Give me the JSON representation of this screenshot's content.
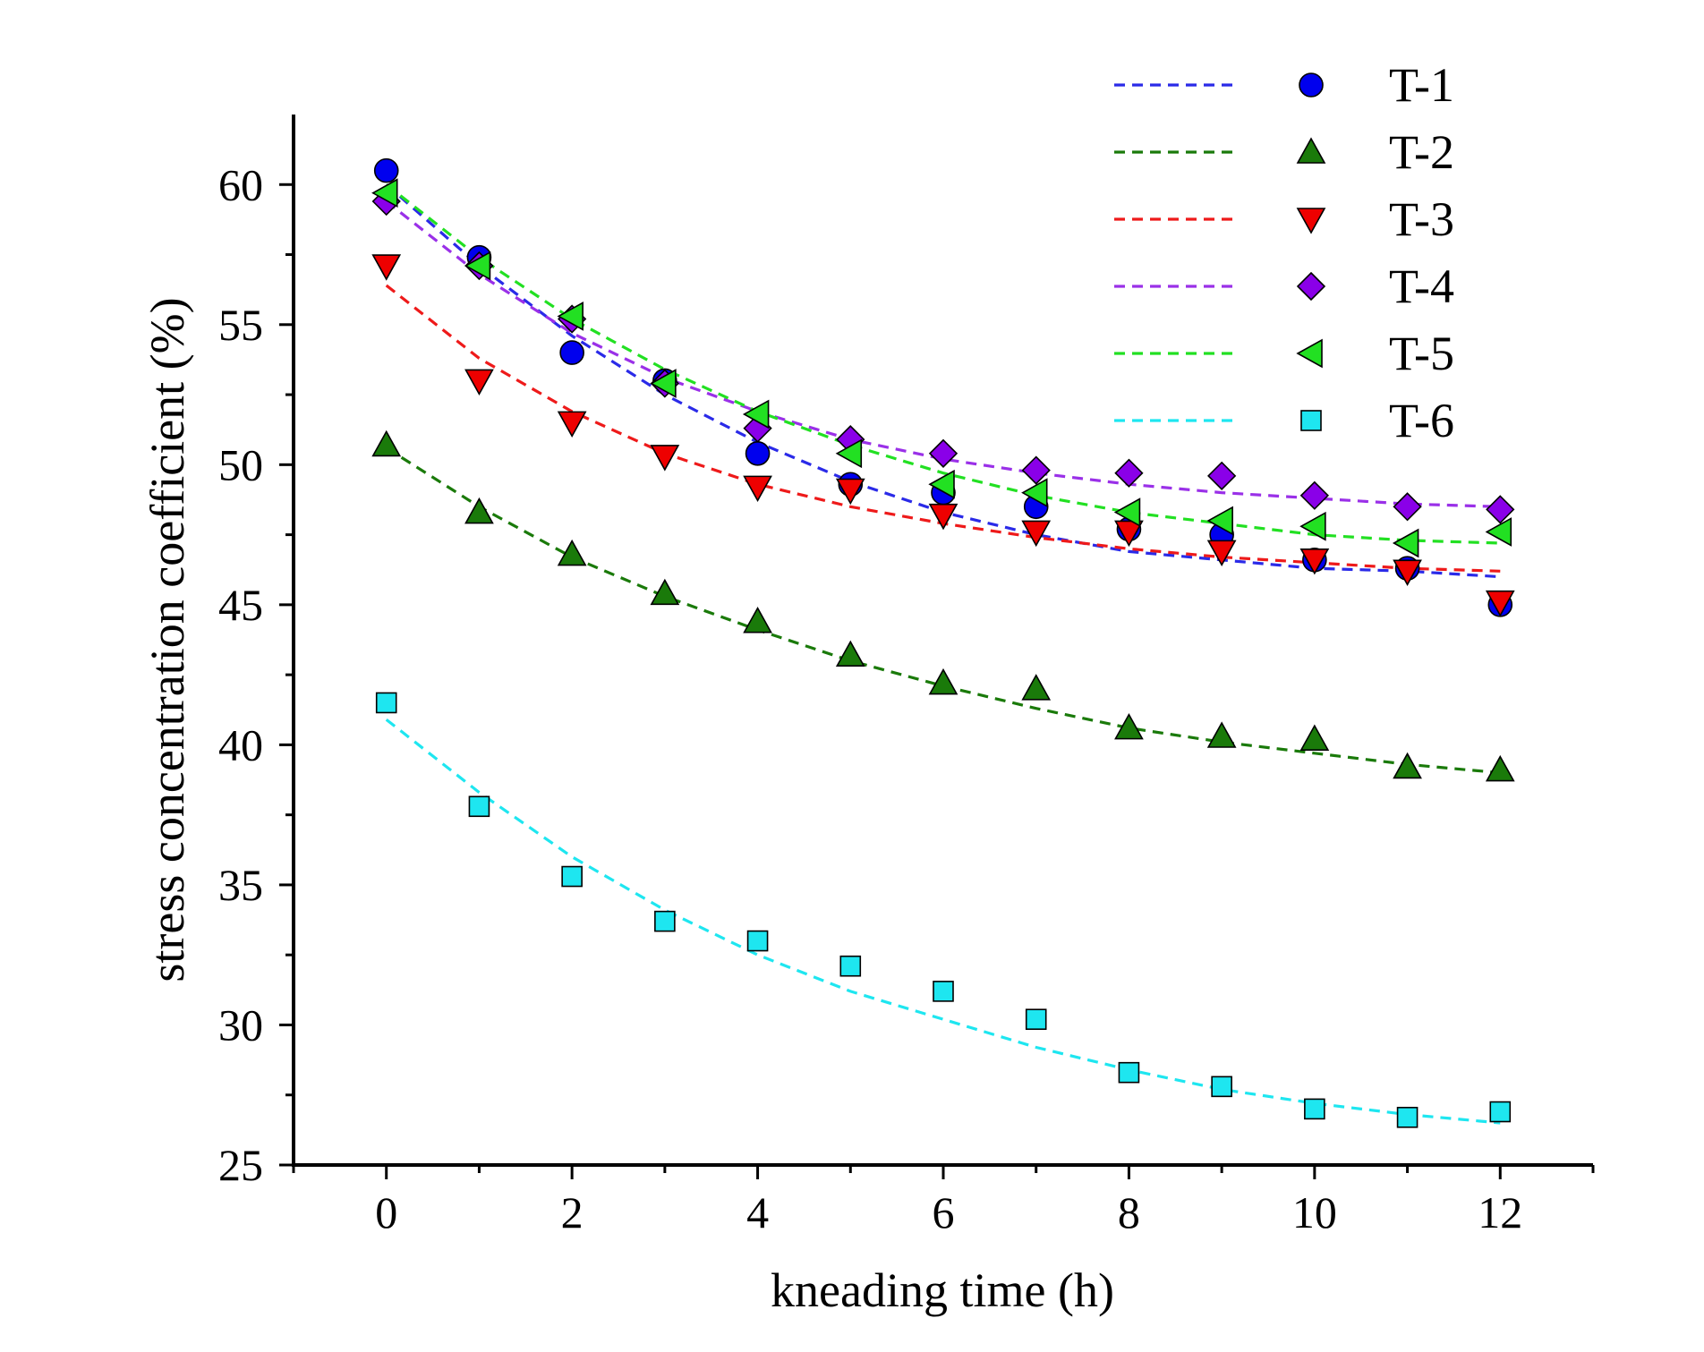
{
  "chart_data": {
    "type": "scatter",
    "title": "",
    "xlabel": "kneading time (h)",
    "ylabel": "stress concentration coefficient (%)",
    "xlim": [
      -1,
      13
    ],
    "ylim": [
      25,
      62.5
    ],
    "xticks": [
      "0",
      "2",
      "4",
      "6",
      "8",
      "10",
      "12"
    ],
    "yticks": [
      "25",
      "30",
      "35",
      "40",
      "45",
      "50",
      "55",
      "60"
    ],
    "legend_position": "top-right",
    "x": [
      0,
      1,
      2,
      3,
      4,
      5,
      6,
      7,
      8,
      9,
      10,
      11,
      12
    ],
    "series": [
      {
        "name": "T-1",
        "marker": "circle",
        "color": "#0000ee",
        "fit_color": "#2a2ae8",
        "values": [
          60.5,
          57.4,
          54.0,
          53.0,
          50.4,
          49.3,
          49.0,
          48.5,
          47.7,
          47.5,
          46.6,
          46.3,
          45.0
        ],
        "fit": [
          60.0,
          57.1,
          54.6,
          52.5,
          50.8,
          49.4,
          48.3,
          47.5,
          46.9,
          46.6,
          46.3,
          46.2,
          46.0
        ]
      },
      {
        "name": "T-2",
        "marker": "triangle-up",
        "color": "#1a7a0a",
        "fit_color": "#1a7a0a",
        "values": [
          50.7,
          48.3,
          46.8,
          45.4,
          44.4,
          43.2,
          42.2,
          42.0,
          40.6,
          40.3,
          40.2,
          39.2,
          39.1
        ],
        "fit": [
          50.6,
          48.5,
          46.7,
          45.3,
          44.1,
          43.0,
          42.1,
          41.3,
          40.6,
          40.1,
          39.7,
          39.3,
          39.0
        ]
      },
      {
        "name": "T-3",
        "marker": "triangle-down",
        "color": "#ee0000",
        "fit_color": "#ee1a1a",
        "values": [
          57.1,
          53.0,
          51.5,
          50.3,
          49.2,
          49.1,
          48.2,
          47.6,
          47.6,
          46.9,
          46.6,
          46.2,
          45.1
        ],
        "fit": [
          56.4,
          53.8,
          51.9,
          50.4,
          49.3,
          48.5,
          47.9,
          47.4,
          47.0,
          46.7,
          46.5,
          46.3,
          46.2
        ]
      },
      {
        "name": "T-4",
        "marker": "diamond",
        "color": "#8a00e8",
        "fit_color": "#9a30e8",
        "values": [
          59.4,
          57.1,
          55.2,
          52.9,
          51.3,
          50.9,
          50.4,
          49.8,
          49.7,
          49.6,
          48.9,
          48.5,
          48.4
        ],
        "fit": [
          59.4,
          56.8,
          54.7,
          53.1,
          51.9,
          50.9,
          50.2,
          49.7,
          49.3,
          49.0,
          48.8,
          48.6,
          48.5
        ]
      },
      {
        "name": "T-5",
        "marker": "triangle-left",
        "color": "#22e022",
        "fit_color": "#22e022",
        "values": [
          59.7,
          57.1,
          55.3,
          52.9,
          51.8,
          50.4,
          49.3,
          49.0,
          48.3,
          48.0,
          47.8,
          47.2,
          47.6
        ],
        "fit": [
          60.0,
          57.4,
          55.2,
          53.4,
          51.9,
          50.7,
          49.7,
          48.9,
          48.3,
          47.9,
          47.5,
          47.3,
          47.2
        ]
      },
      {
        "name": "T-6",
        "marker": "square",
        "color": "#1ee6f0",
        "fit_color": "#1ee6f0",
        "values": [
          41.5,
          37.8,
          35.3,
          33.7,
          33.0,
          32.1,
          31.2,
          30.2,
          28.3,
          27.8,
          27.0,
          26.7,
          26.9
        ],
        "fit": [
          40.9,
          38.3,
          36.0,
          34.1,
          32.5,
          31.2,
          30.2,
          29.2,
          28.4,
          27.7,
          27.2,
          26.8,
          26.5
        ]
      }
    ]
  }
}
